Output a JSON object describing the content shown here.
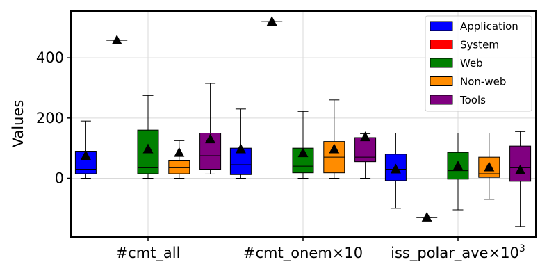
{
  "chart_data": {
    "type": "box",
    "ylabel": "Values",
    "ylim": [
      -195,
      555
    ],
    "yticks": [
      0,
      200,
      400
    ],
    "grid": true,
    "legend_position": "top-right",
    "categories": [
      "#cmt_all",
      "#cmt_onem×10",
      "iss_polar_ave×10"
    ],
    "category_superscripts": [
      "",
      "",
      "3"
    ],
    "series": [
      {
        "name": "Application",
        "color": "#0000ff",
        "boxes": [
          {
            "whislo": 0,
            "q1": 15,
            "med": 30,
            "q3": 90,
            "whishi": 190,
            "mean": 75
          },
          {
            "whislo": 0,
            "q1": 12,
            "med": 45,
            "q3": 100,
            "whishi": 230,
            "mean": 97
          },
          {
            "whislo": -100,
            "q1": -8,
            "med": 30,
            "q3": 80,
            "whishi": 150,
            "mean": 30
          }
        ]
      },
      {
        "name": "System",
        "color": "#ff0000",
        "boxes": [
          {
            "whislo": 458,
            "q1": 458,
            "med": 458,
            "q3": 458,
            "whishi": 458,
            "mean": 458
          },
          {
            "whislo": 520,
            "q1": 520,
            "med": 520,
            "q3": 520,
            "whishi": 520,
            "mean": 520
          },
          {
            "whislo": -130,
            "q1": -130,
            "med": -130,
            "q3": -130,
            "whishi": -130,
            "mean": -130
          }
        ]
      },
      {
        "name": "Web",
        "color": "#008000",
        "boxes": [
          {
            "whislo": 0,
            "q1": 15,
            "med": 35,
            "q3": 160,
            "whishi": 275,
            "mean": 97
          },
          {
            "whislo": 0,
            "q1": 18,
            "med": 40,
            "q3": 100,
            "whishi": 222,
            "mean": 84
          },
          {
            "whislo": -105,
            "q1": -3,
            "med": 25,
            "q3": 86,
            "whishi": 150,
            "mean": 40
          }
        ]
      },
      {
        "name": "Non-web",
        "color": "#ff8c00",
        "boxes": [
          {
            "whislo": 0,
            "q1": 15,
            "med": 35,
            "q3": 60,
            "whishi": 125,
            "mean": 85
          },
          {
            "whislo": 0,
            "q1": 18,
            "med": 70,
            "q3": 122,
            "whishi": 260,
            "mean": 97
          },
          {
            "whislo": -70,
            "q1": 3,
            "med": 15,
            "q3": 70,
            "whishi": 150,
            "mean": 37
          }
        ]
      },
      {
        "name": "Tools",
        "color": "#800080",
        "boxes": [
          {
            "whislo": 14,
            "q1": 30,
            "med": 75,
            "q3": 150,
            "whishi": 315,
            "mean": 130
          },
          {
            "whislo": 0,
            "q1": 55,
            "med": 70,
            "q3": 135,
            "whishi": 148,
            "mean": 137
          },
          {
            "whislo": -160,
            "q1": -10,
            "med": 35,
            "q3": 107,
            "whishi": 155,
            "mean": 27
          }
        ]
      }
    ]
  }
}
